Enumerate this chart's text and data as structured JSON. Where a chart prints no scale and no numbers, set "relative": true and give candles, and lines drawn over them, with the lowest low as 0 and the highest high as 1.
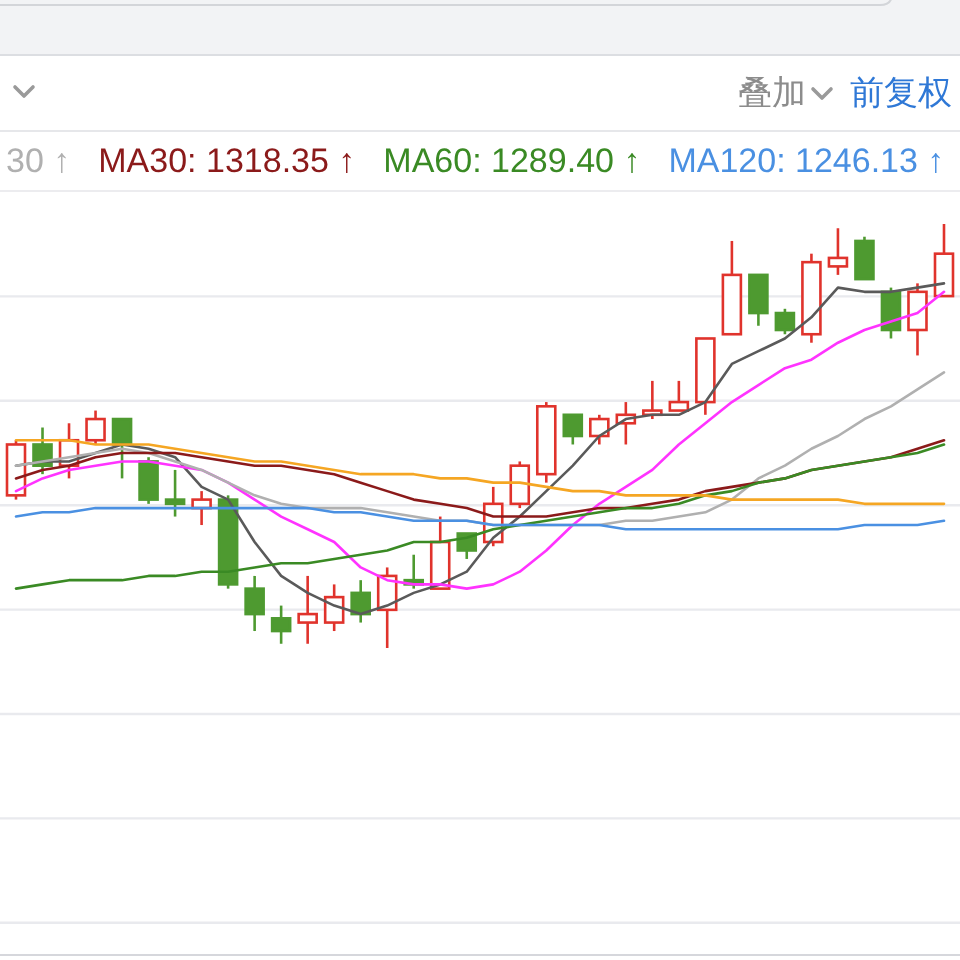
{
  "chart_data": {
    "type": "candlestick",
    "relative": true,
    "grid": "y",
    "legend": "top",
    "annotations": [
      "叠加",
      "前复权"
    ],
    "categories": [
      null,
      null,
      null,
      null,
      null,
      null,
      null,
      null,
      null,
      null,
      null,
      null,
      null,
      null,
      null,
      null,
      null,
      null,
      null,
      null,
      null,
      null,
      null,
      null,
      null,
      null,
      null,
      null,
      null,
      null,
      null,
      null,
      null,
      null,
      null,
      null
    ],
    "ohlc": [
      [
        0.36,
        0.49,
        0.35,
        0.48
      ],
      [
        0.48,
        0.52,
        0.41,
        0.43
      ],
      [
        0.43,
        0.53,
        0.4,
        0.49
      ],
      [
        0.49,
        0.56,
        0.48,
        0.54
      ],
      [
        0.54,
        0.54,
        0.4,
        0.48
      ],
      [
        0.44,
        0.45,
        0.34,
        0.35
      ],
      [
        0.35,
        0.42,
        0.31,
        0.34
      ],
      [
        0.33,
        0.37,
        0.29,
        0.35
      ],
      [
        0.35,
        0.36,
        0.14,
        0.15
      ],
      [
        0.14,
        0.17,
        0.04,
        0.08
      ],
      [
        0.07,
        0.1,
        0.01,
        0.04
      ],
      [
        0.06,
        0.17,
        0.01,
        0.08
      ],
      [
        0.06,
        0.15,
        0.04,
        0.12
      ],
      [
        0.13,
        0.16,
        0.06,
        0.08
      ],
      [
        0.09,
        0.19,
        0,
        0.17
      ],
      [
        0.16,
        0.22,
        0.14,
        0.15
      ],
      [
        0.14,
        0.31,
        0.14,
        0.25
      ],
      [
        0.27,
        0.27,
        0.21,
        0.23
      ],
      [
        0.25,
        0.38,
        0.24,
        0.34
      ],
      [
        0.34,
        0.44,
        0.33,
        0.43
      ],
      [
        0.41,
        0.58,
        0.39,
        0.57
      ],
      [
        0.55,
        0.55,
        0.48,
        0.5
      ],
      [
        0.5,
        0.55,
        0.48,
        0.54
      ],
      [
        0.53,
        0.58,
        0.48,
        0.55
      ],
      [
        0.55,
        0.63,
        0.54,
        0.56
      ],
      [
        0.56,
        0.63,
        0.56,
        0.58
      ],
      [
        0.58,
        0.73,
        0.55,
        0.73
      ],
      [
        0.74,
        0.96,
        0.74,
        0.88
      ],
      [
        0.88,
        0.88,
        0.76,
        0.79
      ],
      [
        0.79,
        0.8,
        0.74,
        0.75
      ],
      [
        0.74,
        0.93,
        0.72,
        0.91
      ],
      [
        0.9,
        0.99,
        0.88,
        0.92
      ],
      [
        0.96,
        0.97,
        0.87,
        0.87
      ],
      [
        0.84,
        0.85,
        0.73,
        0.75
      ],
      [
        0.75,
        0.86,
        0.69,
        0.84
      ],
      [
        0.83,
        1,
        0.83,
        0.93
      ]
    ],
    "colors": [
      "#e0332c",
      "#4e9a30",
      "#e0332c",
      "#e0332c",
      "#4e9a30",
      "#4e9a30",
      "#4e9a30",
      "#e0332c",
      "#4e9a30",
      "#4e9a30",
      "#4e9a30",
      "#e0332c",
      "#e0332c",
      "#4e9a30",
      "#e0332c",
      "#4e9a30",
      "#e0332c",
      "#4e9a30",
      "#e0332c",
      "#e0332c",
      "#e0332c",
      "#4e9a30",
      "#e0332c",
      "#e0332c",
      "#e0332c",
      "#e0332c",
      "#e0332c",
      "#e0332c",
      "#4e9a30",
      "#4e9a30",
      "#e0332c",
      "#e0332c",
      "#4e9a30",
      "#4e9a30",
      "#e0332c",
      "#e0332c"
    ],
    "series": [
      {
        "type": "line",
        "color": "#5a5a5a",
        "values": [
          0.43,
          0.44,
          0.44,
          0.46,
          0.48,
          0.47,
          0.45,
          0.38,
          0.35,
          0.25,
          0.17,
          0.13,
          0.1,
          0.08,
          0.1,
          0.13,
          0.15,
          0.18,
          0.26,
          0.31,
          0.37,
          0.43,
          0.5,
          0.54,
          0.55,
          0.55,
          0.58,
          0.67,
          0.7,
          0.73,
          0.78,
          0.85,
          0.84,
          0.84,
          0.85,
          0.86
        ]
      },
      {
        "type": "line",
        "color": "#ff33ff",
        "values": [
          0.37,
          0.4,
          0.42,
          0.43,
          0.44,
          0.44,
          0.43,
          0.42,
          0.39,
          0.35,
          0.31,
          0.28,
          0.25,
          0.19,
          0.16,
          0.15,
          0.15,
          0.14,
          0.15,
          0.18,
          0.23,
          0.29,
          0.34,
          0.38,
          0.42,
          0.48,
          0.53,
          0.58,
          0.62,
          0.66,
          0.68,
          0.72,
          0.75,
          0.77,
          0.79,
          0.84
        ]
      },
      {
        "type": "line",
        "name": "30 ↑",
        "color": "#b0b0b0",
        "values": [
          0.43,
          0.44,
          0.45,
          0.46,
          0.47,
          0.46,
          0.44,
          0.42,
          0.39,
          0.36,
          0.34,
          0.33,
          0.33,
          0.33,
          0.32,
          0.31,
          0.3,
          0.3,
          0.29,
          0.29,
          0.29,
          0.29,
          0.29,
          0.3,
          0.3,
          0.31,
          0.32,
          0.35,
          0.4,
          0.43,
          0.47,
          0.5,
          0.54,
          0.57,
          0.61,
          0.65
        ]
      },
      {
        "type": "line",
        "name": "MA30: 1318.35 ↑",
        "color": "#8b1a1a",
        "values": [
          0.4,
          0.42,
          0.43,
          0.45,
          0.46,
          0.46,
          0.46,
          0.45,
          0.44,
          0.43,
          0.43,
          0.42,
          0.41,
          0.39,
          0.37,
          0.35,
          0.34,
          0.33,
          0.31,
          0.31,
          0.31,
          0.32,
          0.33,
          0.33,
          0.34,
          0.35,
          0.37,
          0.38,
          0.39,
          0.4,
          0.42,
          0.43,
          0.44,
          0.45,
          0.47,
          0.49
        ]
      },
      {
        "type": "line",
        "name": "MA60: 1289.40 ↑",
        "color": "#3a8a24",
        "values": [
          0.14,
          0.15,
          0.16,
          0.16,
          0.16,
          0.17,
          0.17,
          0.18,
          0.18,
          0.19,
          0.2,
          0.2,
          0.21,
          0.22,
          0.23,
          0.25,
          0.25,
          0.26,
          0.28,
          0.29,
          0.3,
          0.31,
          0.32,
          0.33,
          0.33,
          0.34,
          0.36,
          0.37,
          0.39,
          0.4,
          0.42,
          0.43,
          0.44,
          0.45,
          0.46,
          0.48
        ]
      },
      {
        "type": "line",
        "name": "MA120: 1246.13 ↑",
        "color": "#4a90e2",
        "values": [
          0.31,
          0.32,
          0.32,
          0.33,
          0.33,
          0.33,
          0.33,
          0.33,
          0.33,
          0.33,
          0.33,
          0.33,
          0.32,
          0.32,
          0.31,
          0.3,
          0.3,
          0.3,
          0.29,
          0.29,
          0.29,
          0.29,
          0.29,
          0.28,
          0.28,
          0.28,
          0.28,
          0.28,
          0.28,
          0.28,
          0.28,
          0.28,
          0.29,
          0.29,
          0.29,
          0.3
        ]
      },
      {
        "type": "line",
        "color": "#f5a623",
        "values": [
          0.49,
          0.49,
          0.49,
          0.48,
          0.48,
          0.48,
          0.47,
          0.46,
          0.45,
          0.44,
          0.44,
          0.43,
          0.42,
          0.41,
          0.41,
          0.41,
          0.4,
          0.4,
          0.39,
          0.39,
          0.38,
          0.37,
          0.37,
          0.36,
          0.36,
          0.36,
          0.36,
          0.35,
          0.35,
          0.35,
          0.35,
          0.35,
          0.34,
          0.34,
          0.34,
          0.34
        ]
      }
    ]
  }
}
